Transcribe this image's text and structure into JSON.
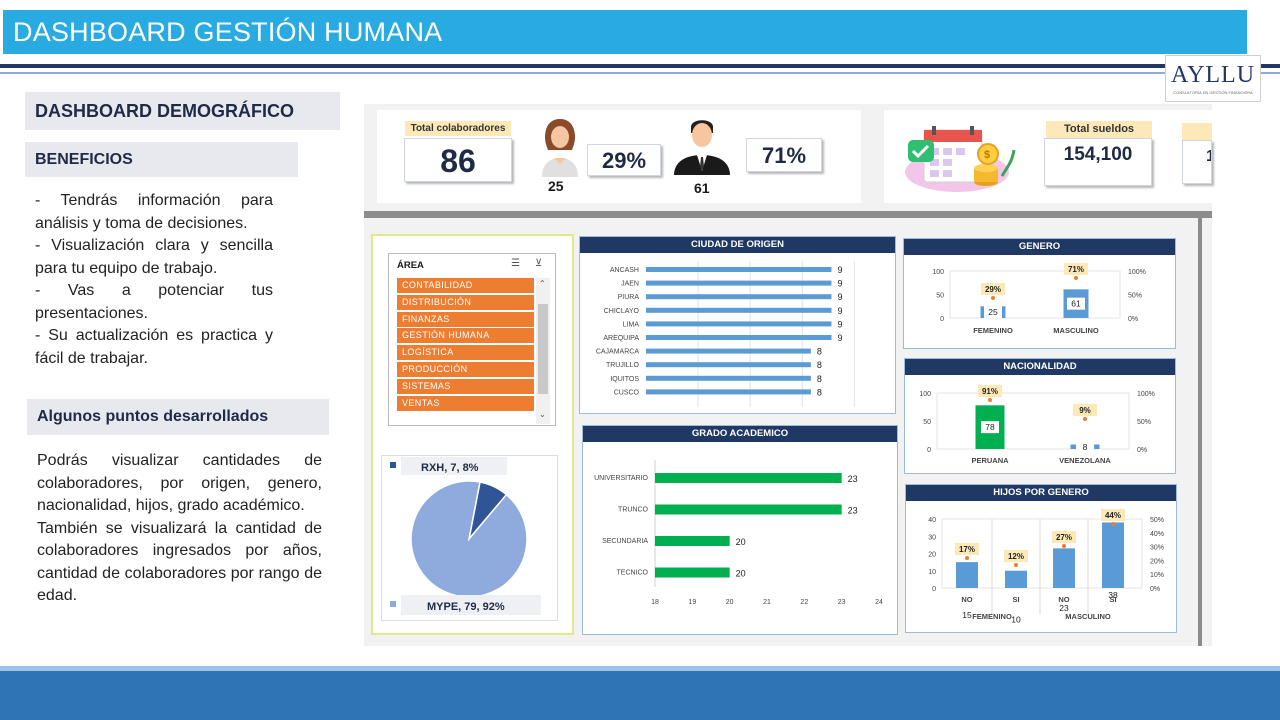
{
  "header": {
    "title": "DASHBOARD GESTIÓN HUMANA"
  },
  "logo": {
    "name": "AYLLU",
    "tagline": "CONSULTORÍA EN GESTIÓN FINANCIERA"
  },
  "left": {
    "section_title": "DASHBOARD DEMOGRÁFICO",
    "benefits_title": "BENEFICIOS",
    "benefits_text": "- Tendrás información para análisis y toma de decisiones.\n- Visualización clara y sencilla para tu equipo de trabajo.\n- Vas a potenciar tus presentaciones.\n- Su actualización es practica y fácil de trabajar.",
    "points_title": "Algunos puntos desarrollados",
    "points_text": "Podrás visualizar cantidades de colaboradores, por origen, genero, nacionalidad, hijos, grado académico.\nTambién se visualizará la cantidad de colaboradores ingresados por años, cantidad de colaboradores por rango de edad."
  },
  "kpi": {
    "total_label": "Total colaboradores",
    "total_value": "86",
    "female_count": "25",
    "female_pct": "29%",
    "male_count": "61",
    "male_pct": "71%",
    "salary_label": "Total sueldos",
    "salary_value": "154,100",
    "extra_value": "1"
  },
  "slicer": {
    "title": "ÁREA",
    "items": [
      "CONTABILIDAD",
      "DISTRIBUCIÓN",
      "FINANZAS",
      "GESTIÓN HUMANA",
      "LOGÍSTICA",
      "PRODUCCIÓN",
      "SISTEMAS",
      "VENTAS"
    ],
    "color": "#ed7d31"
  },
  "chart_data": [
    {
      "type": "bar",
      "title": "CIUDAD DE ORIGEN",
      "orientation": "horizontal",
      "categories": [
        "ANCASH",
        "JAEN",
        "PIURA",
        "CHICLAYO",
        "LIMA",
        "AREQUIPA",
        "CAJAMARCA",
        "TRUJILLO",
        "IQUITOS",
        "CUSCO"
      ],
      "values": [
        9,
        9,
        9,
        9,
        9,
        9,
        8,
        8,
        8,
        8
      ],
      "color": "#5b9bd5",
      "xlim": [
        0,
        10
      ]
    },
    {
      "type": "bar",
      "title": "GRADO ACADEMICO",
      "orientation": "horizontal",
      "categories": [
        "UNIVERSITARIO",
        "TRUNCO",
        "SECUNDARIA",
        "TECNICO"
      ],
      "values": [
        23,
        23,
        20,
        20
      ],
      "xticks": [
        "18",
        "19",
        "20",
        "21",
        "22",
        "23",
        "24"
      ],
      "xlim": [
        18,
        24
      ],
      "color": "#00b050"
    },
    {
      "type": "bar",
      "title": "GENERO",
      "categories": [
        "FEMENINO",
        "MASCULINO"
      ],
      "values": [
        25,
        61
      ],
      "percent_labels": [
        "29%",
        "71%"
      ],
      "yticks": [
        "0",
        "50",
        "100"
      ],
      "y2ticks": [
        "0%",
        "50%",
        "100%"
      ],
      "ylim": [
        0,
        100
      ],
      "color": "#5b9bd5"
    },
    {
      "type": "bar",
      "title": "NACIONALIDAD",
      "categories": [
        "PERUANA",
        "VENEZOLANA"
      ],
      "values": [
        78,
        8
      ],
      "percent_labels": [
        "91%",
        "9%"
      ],
      "yticks": [
        "0",
        "50",
        "100"
      ],
      "y2ticks": [
        "0%",
        "50%",
        "100%"
      ],
      "ylim": [
        0,
        100
      ],
      "color": "#00b050",
      "color2": "#5b9bd5"
    },
    {
      "type": "bar",
      "title": "HIJOS POR GENERO",
      "categories": [
        "NO",
        "SI",
        "NO",
        "SI"
      ],
      "groups": [
        "FEMENINO",
        "MASCULINO"
      ],
      "values": [
        15,
        10,
        23,
        38
      ],
      "percent_labels": [
        "17%",
        "12%",
        "27%",
        "44%"
      ],
      "yticks": [
        "0",
        "10",
        "20",
        "30",
        "40"
      ],
      "y2ticks": [
        "0%",
        "10%",
        "20%",
        "30%",
        "40%",
        "50%"
      ],
      "ylim": [
        0,
        40
      ],
      "color": "#5b9bd5"
    },
    {
      "type": "pie",
      "labels": [
        "RXH, 7, 8%",
        "MYPE, 79, 92%"
      ],
      "values": [
        7,
        79
      ],
      "colors": [
        "#2f5597",
        "#8faadc"
      ]
    }
  ]
}
